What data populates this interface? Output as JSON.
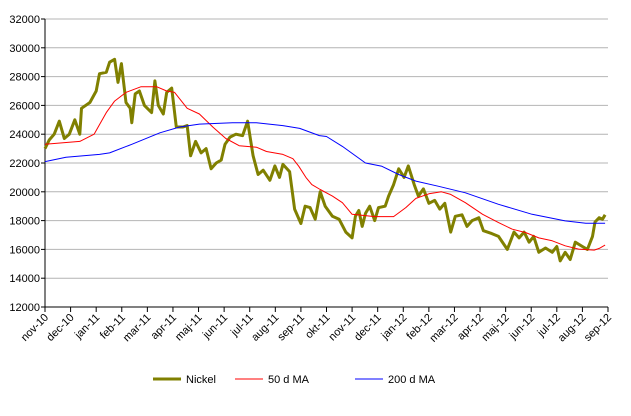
{
  "chart_data": {
    "type": "line",
    "title": "",
    "xlabel": "",
    "ylabel": "",
    "ylim": [
      12000,
      32000
    ],
    "yticks": [
      12000,
      14000,
      16000,
      18000,
      20000,
      22000,
      24000,
      26000,
      28000,
      30000,
      32000
    ],
    "xtick_labels": [
      "nov-10",
      "dec-10",
      "jan-11",
      "feb-11",
      "mar-11",
      "apr-11",
      "maj-11",
      "jun-11",
      "jul-11",
      "aug-11",
      "sep-11",
      "okt-11",
      "nov-11",
      "dec-11",
      "jan-12",
      "feb-12",
      "mar-12",
      "apr-12",
      "maj-12",
      "jun-12",
      "jul-12",
      "aug-12",
      "sep-12"
    ],
    "xlim": [
      "2010-11-01",
      "2012-09-01"
    ],
    "grid": "horizontal",
    "legend": "bottom",
    "series": [
      {
        "name": "Nickel",
        "color": "#808000",
        "points": [
          [
            "2010-11-01",
            23000
          ],
          [
            "2010-11-06",
            23600
          ],
          [
            "2010-11-12",
            24000
          ],
          [
            "2010-11-18",
            24900
          ],
          [
            "2010-11-24",
            23700
          ],
          [
            "2010-11-30",
            24000
          ],
          [
            "2010-12-06",
            25000
          ],
          [
            "2010-12-12",
            24000
          ],
          [
            "2010-12-14",
            25800
          ],
          [
            "2010-12-24",
            26200
          ],
          [
            "2011-01-01",
            27000
          ],
          [
            "2011-01-05",
            28200
          ],
          [
            "2011-01-13",
            28300
          ],
          [
            "2011-01-17",
            29000
          ],
          [
            "2011-01-23",
            29200
          ],
          [
            "2011-01-27",
            27600
          ],
          [
            "2011-01-31",
            28900
          ],
          [
            "2011-02-06",
            26200
          ],
          [
            "2011-02-11",
            25800
          ],
          [
            "2011-02-13",
            24800
          ],
          [
            "2011-02-17",
            26800
          ],
          [
            "2011-02-22",
            27000
          ],
          [
            "2011-02-28",
            26000
          ],
          [
            "2011-03-06",
            25500
          ],
          [
            "2011-03-10",
            27700
          ],
          [
            "2011-03-14",
            26000
          ],
          [
            "2011-03-20",
            25400
          ],
          [
            "2011-03-24",
            26900
          ],
          [
            "2011-03-30",
            27200
          ],
          [
            "2011-04-05",
            24500
          ],
          [
            "2011-04-13",
            24500
          ],
          [
            "2011-04-18",
            24600
          ],
          [
            "2011-04-22",
            22500
          ],
          [
            "2011-04-28",
            23500
          ],
          [
            "2011-05-04",
            22700
          ],
          [
            "2011-05-10",
            23000
          ],
          [
            "2011-05-16",
            21600
          ],
          [
            "2011-05-22",
            22000
          ],
          [
            "2011-05-28",
            22200
          ],
          [
            "2011-06-02",
            23300
          ],
          [
            "2011-06-08",
            23800
          ],
          [
            "2011-06-15",
            24000
          ],
          [
            "2011-06-23",
            23900
          ],
          [
            "2011-06-29",
            24900
          ],
          [
            "2011-07-05",
            22500
          ],
          [
            "2011-07-11",
            21200
          ],
          [
            "2011-07-17",
            21500
          ],
          [
            "2011-07-25",
            20800
          ],
          [
            "2011-07-31",
            21800
          ],
          [
            "2011-08-06",
            21000
          ],
          [
            "2011-08-10",
            21900
          ],
          [
            "2011-08-18",
            21400
          ],
          [
            "2011-08-24",
            18800
          ],
          [
            "2011-09-01",
            17800
          ],
          [
            "2011-09-06",
            19000
          ],
          [
            "2011-09-12",
            18900
          ],
          [
            "2011-09-18",
            18100
          ],
          [
            "2011-09-24",
            20000
          ],
          [
            "2011-09-30",
            19000
          ],
          [
            "2011-10-08",
            18300
          ],
          [
            "2011-10-16",
            18100
          ],
          [
            "2011-10-24",
            17200
          ],
          [
            "2011-11-01",
            16800
          ],
          [
            "2011-11-05",
            18300
          ],
          [
            "2011-11-09",
            18700
          ],
          [
            "2011-11-13",
            17600
          ],
          [
            "2011-11-17",
            18500
          ],
          [
            "2011-11-22",
            19000
          ],
          [
            "2011-11-28",
            18000
          ],
          [
            "2011-12-02",
            18900
          ],
          [
            "2011-12-10",
            19000
          ],
          [
            "2011-12-14",
            19700
          ],
          [
            "2011-12-20",
            20500
          ],
          [
            "2011-12-26",
            21600
          ],
          [
            "2012-01-02",
            21000
          ],
          [
            "2012-01-07",
            21800
          ],
          [
            "2012-01-14",
            20500
          ],
          [
            "2012-01-19",
            19700
          ],
          [
            "2012-01-25",
            20200
          ],
          [
            "2012-02-01",
            19200
          ],
          [
            "2012-02-08",
            19400
          ],
          [
            "2012-02-14",
            18800
          ],
          [
            "2012-02-20",
            19200
          ],
          [
            "2012-02-27",
            17200
          ],
          [
            "2012-03-02",
            18300
          ],
          [
            "2012-03-10",
            18400
          ],
          [
            "2012-03-16",
            17600
          ],
          [
            "2012-03-22",
            18000
          ],
          [
            "2012-03-30",
            18200
          ],
          [
            "2012-04-05",
            17300
          ],
          [
            "2012-04-15",
            17100
          ],
          [
            "2012-04-23",
            16900
          ],
          [
            "2012-05-03",
            16000
          ],
          [
            "2012-05-11",
            17200
          ],
          [
            "2012-05-17",
            16800
          ],
          [
            "2012-05-23",
            17200
          ],
          [
            "2012-05-29",
            16500
          ],
          [
            "2012-06-04",
            16900
          ],
          [
            "2012-06-10",
            15800
          ],
          [
            "2012-06-18",
            16100
          ],
          [
            "2012-06-26",
            15800
          ],
          [
            "2012-07-01",
            16200
          ],
          [
            "2012-07-05",
            15200
          ],
          [
            "2012-07-11",
            15800
          ],
          [
            "2012-07-17",
            15300
          ],
          [
            "2012-07-23",
            16500
          ],
          [
            "2012-08-01",
            16200
          ],
          [
            "2012-08-07",
            16000
          ],
          [
            "2012-08-13",
            16900
          ],
          [
            "2012-08-16",
            17900
          ],
          [
            "2012-08-21",
            18200
          ],
          [
            "2012-08-25",
            18100
          ],
          [
            "2012-08-28",
            18400
          ]
        ]
      },
      {
        "name": "50 d MA",
        "color": "#ff0000",
        "points": [
          [
            "2010-11-01",
            23300
          ],
          [
            "2010-12-12",
            23500
          ],
          [
            "2010-12-29",
            24000
          ],
          [
            "2011-01-13",
            25500
          ],
          [
            "2011-01-23",
            26300
          ],
          [
            "2011-02-06",
            26900
          ],
          [
            "2011-02-24",
            27300
          ],
          [
            "2011-03-12",
            27300
          ],
          [
            "2011-03-24",
            27000
          ],
          [
            "2011-04-03",
            26900
          ],
          [
            "2011-04-18",
            25800
          ],
          [
            "2011-05-02",
            25400
          ],
          [
            "2011-05-18",
            24500
          ],
          [
            "2011-06-03",
            23700
          ],
          [
            "2011-06-19",
            23200
          ],
          [
            "2011-07-09",
            23100
          ],
          [
            "2011-07-21",
            22800
          ],
          [
            "2011-08-10",
            22600
          ],
          [
            "2011-08-22",
            22300
          ],
          [
            "2011-08-29",
            21770
          ],
          [
            "2011-09-07",
            21000
          ],
          [
            "2011-09-14",
            20500
          ],
          [
            "2011-09-24",
            20160
          ],
          [
            "2011-10-08",
            19700
          ],
          [
            "2011-10-20",
            19240
          ],
          [
            "2011-11-01",
            18440
          ],
          [
            "2011-11-28",
            18280
          ],
          [
            "2011-12-20",
            18280
          ],
          [
            "2012-01-04",
            18900
          ],
          [
            "2012-01-16",
            19540
          ],
          [
            "2012-02-01",
            19860
          ],
          [
            "2012-02-16",
            20000
          ],
          [
            "2012-02-27",
            19820
          ],
          [
            "2012-03-14",
            19240
          ],
          [
            "2012-04-04",
            18440
          ],
          [
            "2012-04-23",
            17860
          ],
          [
            "2012-05-09",
            17400
          ],
          [
            "2012-05-25",
            17170
          ],
          [
            "2012-06-10",
            16800
          ],
          [
            "2012-06-26",
            16600
          ],
          [
            "2012-07-11",
            16250
          ],
          [
            "2012-07-27",
            16020
          ],
          [
            "2012-08-15",
            15950
          ],
          [
            "2012-08-21",
            16070
          ],
          [
            "2012-08-28",
            16300
          ]
        ]
      },
      {
        "name": "200 d MA",
        "color": "#0000ff",
        "points": [
          [
            "2010-11-01",
            22100
          ],
          [
            "2010-11-26",
            22400
          ],
          [
            "2011-01-05",
            22600
          ],
          [
            "2011-01-17",
            22700
          ],
          [
            "2011-02-13",
            23300
          ],
          [
            "2011-03-16",
            24100
          ],
          [
            "2011-04-09",
            24500
          ],
          [
            "2011-05-02",
            24700
          ],
          [
            "2011-06-11",
            24800
          ],
          [
            "2011-07-09",
            24800
          ],
          [
            "2011-08-10",
            24600
          ],
          [
            "2011-08-30",
            24400
          ],
          [
            "2011-09-23",
            23900
          ],
          [
            "2011-10-01",
            23840
          ],
          [
            "2011-10-20",
            23150
          ],
          [
            "2011-11-17",
            22000
          ],
          [
            "2011-12-06",
            21770
          ],
          [
            "2011-12-26",
            21200
          ],
          [
            "2012-01-16",
            20740
          ],
          [
            "2012-02-12",
            20390
          ],
          [
            "2012-03-14",
            19930
          ],
          [
            "2012-04-23",
            19130
          ],
          [
            "2012-06-02",
            18440
          ],
          [
            "2012-07-11",
            17980
          ],
          [
            "2012-08-05",
            17820
          ],
          [
            "2012-08-28",
            17820
          ]
        ]
      }
    ]
  }
}
